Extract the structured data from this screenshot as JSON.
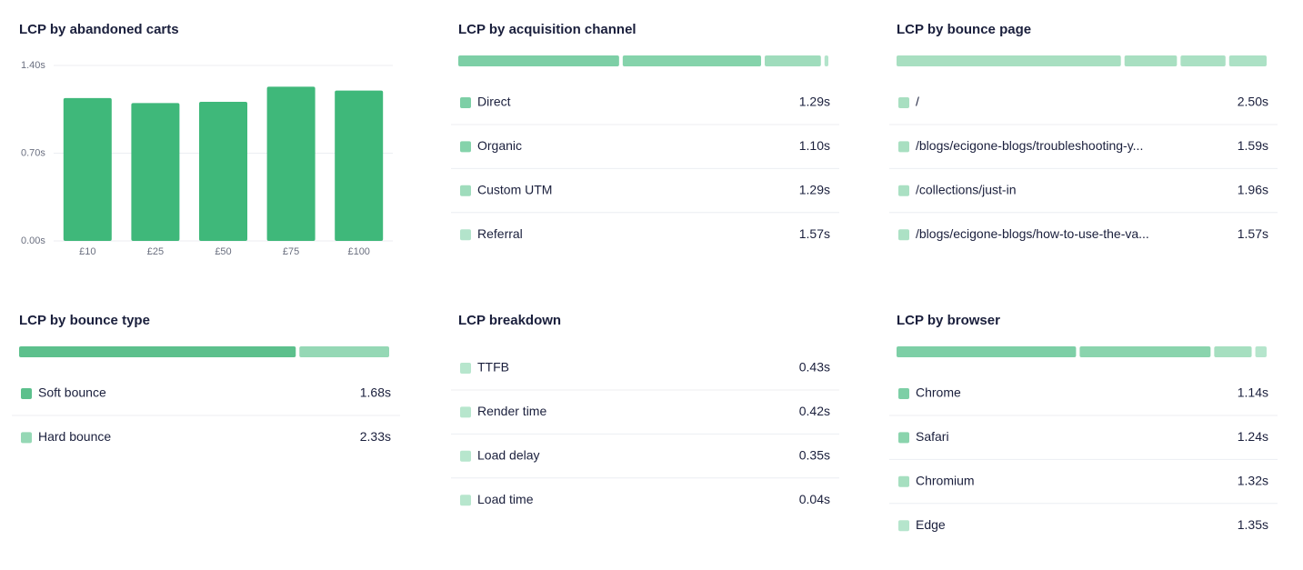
{
  "chart_data": [
    {
      "type": "bar",
      "title": "LCP by abandoned carts",
      "categories": [
        "£10",
        "£25",
        "£50",
        "£75",
        "£100"
      ],
      "values": [
        1.14,
        1.1,
        1.11,
        1.23,
        1.2
      ],
      "color": "#3fb87a",
      "ylim": [
        0,
        1.4
      ],
      "yticks": [
        {
          "value": 0,
          "label": "0.00s"
        },
        {
          "value": 0.7,
          "label": "0.70s"
        },
        {
          "value": 1.4,
          "label": "1.40s"
        }
      ],
      "grid": true
    },
    {
      "type": "share",
      "title": "LCP by acquisition channel",
      "categories": [
        "Direct",
        "Organic",
        "Custom UTM",
        "Referral"
      ],
      "shares": [
        44,
        38,
        16,
        2
      ],
      "values": [
        1.29,
        1.1,
        1.29,
        1.57
      ],
      "value_labels": [
        "1.29s",
        "1.10s",
        "1.29s",
        "1.57s"
      ],
      "colors": [
        "#7dcfa6",
        "#85d3ab",
        "#9fdcbc",
        "#b3e4cb"
      ]
    },
    {
      "type": "share",
      "title": "LCP by bounce page",
      "categories": [
        "/",
        "/blogs/ecigone-blogs/troubleshooting-y...",
        "/collections/just-in",
        "/blogs/ecigone-blogs/how-to-use-the-va..."
      ],
      "shares": [
        61,
        15,
        13,
        11
      ],
      "values": [
        2.5,
        1.59,
        1.96,
        1.57
      ],
      "value_labels": [
        "2.50s",
        "1.59s",
        "1.96s",
        "1.57s"
      ],
      "colors": [
        "#a8dfc1",
        "#a8dfc1",
        "#aae0c3",
        "#ace1c5"
      ]
    },
    {
      "type": "share",
      "title": "LCP by bounce type",
      "categories": [
        "Soft bounce",
        "Hard bounce"
      ],
      "shares": [
        75,
        25
      ],
      "values": [
        1.68,
        2.33
      ],
      "value_labels": [
        "1.68s",
        "2.33s"
      ],
      "colors": [
        "#5cc08c",
        "#95d8b5"
      ]
    },
    {
      "type": "list",
      "title": "LCP breakdown",
      "categories": [
        "TTFB",
        "Render time",
        "Load delay",
        "Load time"
      ],
      "values": [
        0.43,
        0.42,
        0.35,
        0.04
      ],
      "value_labels": [
        "0.43s",
        "0.42s",
        "0.35s",
        "0.04s"
      ],
      "colors": [
        "#b7e6cd",
        "#b7e6cd",
        "#b7e6cd",
        "#b7e6cd"
      ]
    },
    {
      "type": "share",
      "title": "LCP by browser",
      "categories": [
        "Chrome",
        "Safari",
        "Chromium",
        "Edge"
      ],
      "shares": [
        49,
        36,
        11,
        4
      ],
      "values": [
        1.14,
        1.24,
        1.32,
        1.35
      ],
      "value_labels": [
        "1.14s",
        "1.24s",
        "1.32s",
        "1.35s"
      ],
      "colors": [
        "#7dcfa6",
        "#8ad4ad",
        "#a6dfc0",
        "#b5e5cc"
      ]
    }
  ]
}
